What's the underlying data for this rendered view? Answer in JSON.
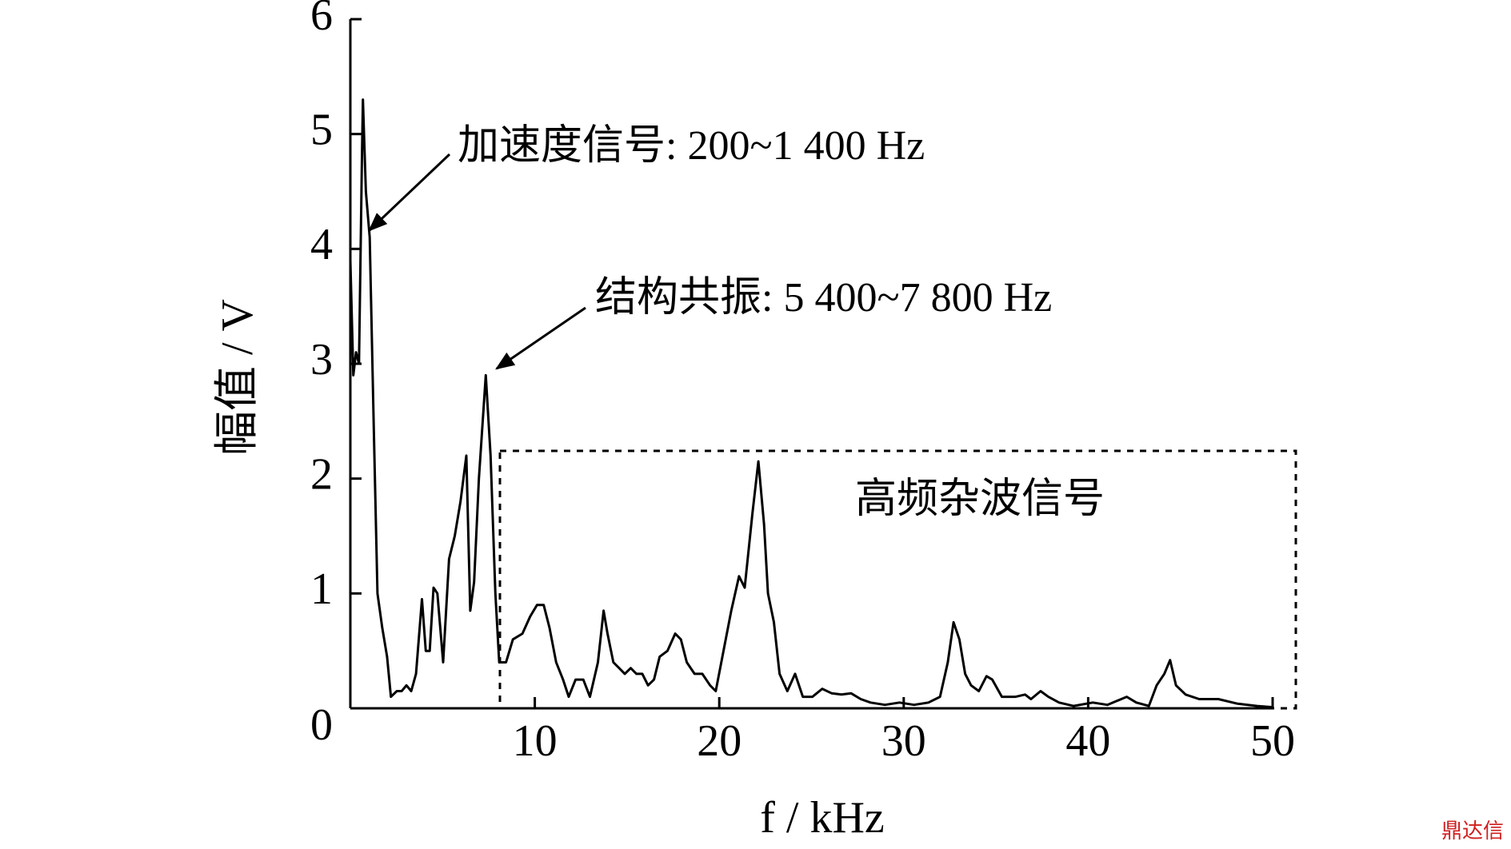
{
  "chart_data": {
    "type": "line",
    "x_label": "f / kHz",
    "y_label": "幅值 / V",
    "annotations": [
      "加速度信号: 200~1 400 Hz",
      "结构共振: 5 400~7 800 Hz",
      "高频杂波信号"
    ],
    "watermark": "鼎达信",
    "x": [
      0,
      0.16,
      0.31,
      0.47,
      0.63,
      0.68,
      0.84,
      1.05,
      1.26,
      1.47,
      1.73,
      1.99,
      2.2,
      2.52,
      2.78,
      3.04,
      3.3,
      3.56,
      3.88,
      4.09,
      4.3,
      4.51,
      4.72,
      5.03,
      5.35,
      5.66,
      5.97,
      6.29,
      6.5,
      6.71,
      6.97,
      7.34,
      7.6,
      7.86,
      8.07,
      8.44,
      8.81,
      9.33,
      9.75,
      10.12,
      10.48,
      10.8,
      11.16,
      11.53,
      11.84,
      12.21,
      12.63,
      12.99,
      13.42,
      13.73,
      13.94,
      14.26,
      14.57,
      14.88,
      15.2,
      15.51,
      15.83,
      16.14,
      16.46,
      16.77,
      17.19,
      17.61,
      17.92,
      18.24,
      18.66,
      19.08,
      19.5,
      19.81,
      20.23,
      20.65,
      21.07,
      21.38,
      21.8,
      22.12,
      22.43,
      22.64,
      22.96,
      23.27,
      23.69,
      24.11,
      24.53,
      25.05,
      25.58,
      26.1,
      26.62,
      27.15,
      27.67,
      28.2,
      28.98,
      29.77,
      30.56,
      31.34,
      31.97,
      32.39,
      32.7,
      33.02,
      33.33,
      33.65,
      34.07,
      34.49,
      34.8,
      35.32,
      36.06,
      36.58,
      36.9,
      37.42,
      37.84,
      38.42,
      39.2,
      40.25,
      41.04,
      42.09,
      42.61,
      43.29,
      43.71,
      44.13,
      44.44,
      44.76,
      45.28,
      46.02,
      47.06,
      48.11,
      49.16,
      50
    ],
    "values": [
      3.9,
      2.9,
      3.1,
      3.0,
      4.8,
      5.3,
      4.5,
      4.1,
      2.5,
      1.0,
      0.7,
      0.45,
      0.1,
      0.15,
      0.15,
      0.2,
      0.15,
      0.3,
      0.95,
      0.5,
      0.5,
      1.05,
      1.0,
      0.4,
      1.3,
      1.5,
      1.8,
      2.2,
      0.85,
      1.1,
      2.0,
      2.9,
      2.2,
      1.0,
      0.4,
      0.4,
      0.6,
      0.65,
      0.8,
      0.9,
      0.9,
      0.7,
      0.4,
      0.25,
      0.1,
      0.25,
      0.25,
      0.1,
      0.4,
      0.85,
      0.65,
      0.4,
      0.35,
      0.3,
      0.35,
      0.3,
      0.3,
      0.2,
      0.25,
      0.45,
      0.5,
      0.65,
      0.6,
      0.4,
      0.3,
      0.3,
      0.2,
      0.15,
      0.5,
      0.85,
      1.15,
      1.05,
      1.7,
      2.15,
      1.6,
      1.0,
      0.75,
      0.3,
      0.15,
      0.3,
      0.1,
      0.1,
      0.17,
      0.13,
      0.12,
      0.13,
      0.08,
      0.05,
      0.03,
      0.05,
      0.03,
      0.05,
      0.1,
      0.4,
      0.75,
      0.6,
      0.3,
      0.2,
      0.15,
      0.28,
      0.25,
      0.1,
      0.1,
      0.12,
      0.08,
      0.15,
      0.1,
      0.05,
      0.02,
      0.05,
      0.03,
      0.1,
      0.05,
      0.02,
      0.2,
      0.3,
      0.42,
      0.2,
      0.12,
      0.08,
      0.08,
      0.04,
      0.02,
      0.01
    ],
    "color": "#000000",
    "xlim": [
      0,
      50
    ],
    "xticks": [
      10,
      20,
      30,
      40,
      50
    ],
    "ylim": [
      0,
      6
    ],
    "yticks": [
      0,
      1,
      2,
      3,
      4,
      5,
      6
    ]
  }
}
